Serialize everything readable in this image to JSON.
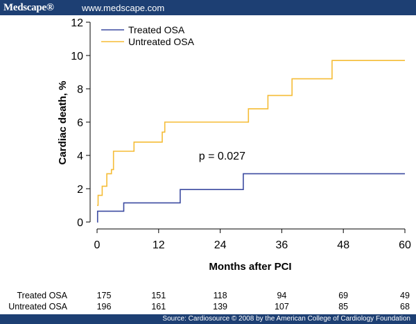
{
  "header": {
    "brand": "Medscape®",
    "url": "www.medscape.com"
  },
  "footer": {
    "source": "Source: Cardiosource © 2008 by the American College of Cardiology Foundation"
  },
  "colors": {
    "header_bg": "#1d3f73",
    "treated": "#3b4aa0",
    "untreated": "#f5bc35"
  },
  "chart_data": {
    "type": "line",
    "title": "",
    "xlabel": "Months after PCI",
    "ylabel": "Cardiac death, %",
    "xlim": [
      0,
      60
    ],
    "ylim": [
      0,
      12
    ],
    "xticks": [
      0,
      12,
      24,
      36,
      48,
      60
    ],
    "yticks": [
      0,
      2,
      4,
      6,
      8,
      10,
      12
    ],
    "grid": false,
    "legend_position": "top-left",
    "annotation": "p = 0.027",
    "annotation_at": [
      17,
      3.75
    ],
    "series": [
      {
        "name": "Treated OSA",
        "color": "#3b4aa0",
        "step": true,
        "points": [
          [
            0,
            0
          ],
          [
            0.1,
            0.65
          ],
          [
            5.2,
            1.15
          ],
          [
            16.2,
            1.95
          ],
          [
            28.5,
            2.9
          ],
          [
            60,
            2.9
          ]
        ]
      },
      {
        "name": "Untreated OSA",
        "color": "#f5bc35",
        "step": true,
        "points": [
          [
            0,
            1.0
          ],
          [
            0.2,
            1.6
          ],
          [
            1.0,
            2.15
          ],
          [
            1.9,
            2.9
          ],
          [
            2.8,
            3.15
          ],
          [
            3.2,
            4.25
          ],
          [
            7.2,
            4.8
          ],
          [
            12.7,
            5.4
          ],
          [
            13.2,
            6.0
          ],
          [
            29.5,
            6.8
          ],
          [
            33.3,
            7.6
          ],
          [
            38.0,
            8.6
          ],
          [
            45.8,
            9.7
          ],
          [
            60,
            9.7
          ]
        ]
      }
    ]
  },
  "risk_table": {
    "time_points": [
      0,
      12,
      24,
      36,
      48,
      60
    ],
    "rows": [
      {
        "label": "Treated OSA",
        "values": [
          "175",
          "151",
          "118",
          "94",
          "69",
          "49"
        ]
      },
      {
        "label": "Untreated OSA",
        "values": [
          "196",
          "161",
          "139",
          "107",
          "85",
          "68"
        ]
      }
    ]
  }
}
